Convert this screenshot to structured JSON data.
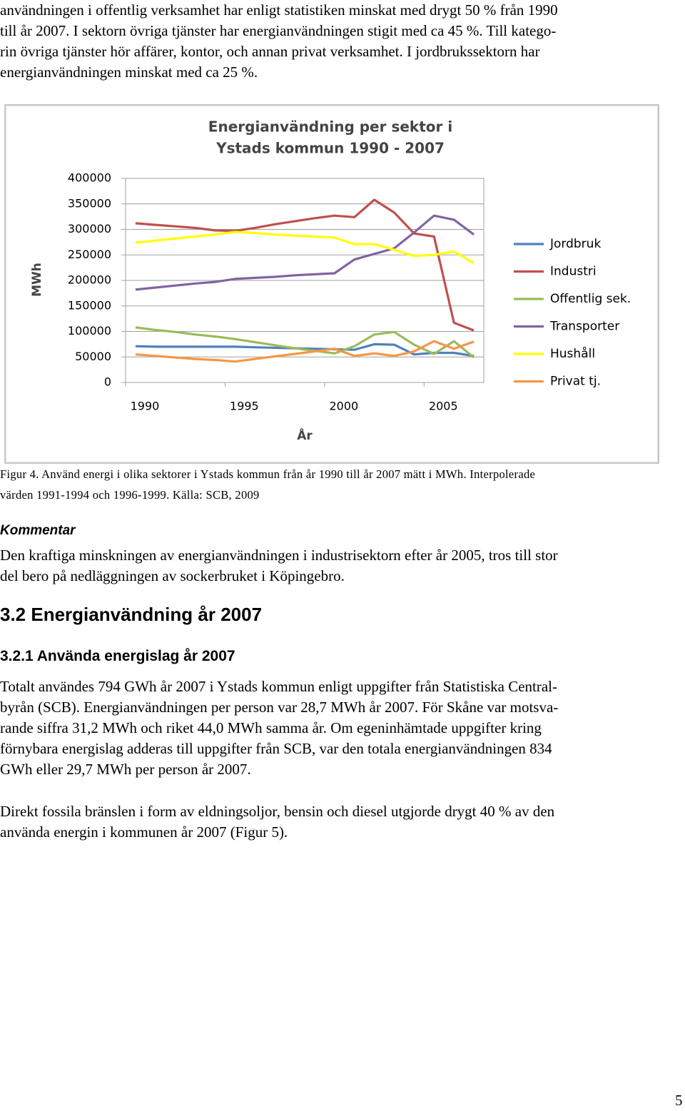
{
  "intro": [
    "användningen i offentlig verksamhet har enligt statistiken minskat med drygt 50 % från 1990",
    "till år 2007. I sektorn övriga tjänster har energianvändningen stigit med ca 45 %. Till katego-",
    "rin övriga tjänster hör affärer, kontor, och annan privat verksamhet. I jordbrukssektorn har",
    "energianvändningen minskat med ca 25 %."
  ],
  "chart_data": {
    "type": "line",
    "title": [
      "Energianvändning per sektor i",
      "Ystads kommun 1990 - 2007"
    ],
    "x_label": "År",
    "y_label": "MWh",
    "categories": [
      "1990",
      null,
      null,
      null,
      null,
      "1995",
      null,
      null,
      null,
      null,
      "2000",
      null,
      null,
      null,
      null,
      "2005",
      null,
      null
    ],
    "ylim": [
      0,
      400000
    ],
    "yticks": [
      0,
      50000,
      100000,
      150000,
      200000,
      250000,
      300000,
      350000,
      400000
    ],
    "grid": true,
    "legend": "right",
    "series": [
      {
        "name": "Jordbruk",
        "color": "#4f81bd",
        "values": [
          71000,
          70000,
          70000,
          70000,
          70000,
          70000,
          69000,
          68000,
          67000,
          66000,
          65000,
          64000,
          75000,
          74000,
          55000,
          58000,
          58000,
          52000
        ]
      },
      {
        "name": "Industri",
        "color": "#c0504d",
        "values": [
          312000,
          309000,
          306000,
          303000,
          298000,
          297000,
          303000,
          310000,
          316000,
          322000,
          327000,
          324000,
          358000,
          333000,
          292000,
          286000,
          117000,
          102000
        ]
      },
      {
        "name": "Offentlig sek.",
        "color": "#9bbb59",
        "values": [
          108000,
          103000,
          99000,
          94000,
          90000,
          85000,
          79000,
          73000,
          67000,
          62000,
          57000,
          71000,
          94000,
          99000,
          74000,
          56000,
          81000,
          49000
        ]
      },
      {
        "name": "Transporter",
        "color": "#8064a2",
        "values": [
          182000,
          186000,
          190000,
          194000,
          197000,
          203000,
          205000,
          207000,
          210000,
          212000,
          214000,
          241000,
          252000,
          263000,
          294000,
          327000,
          319000,
          290000
        ]
      },
      {
        "name": "Hushåll",
        "color": "#ffff00",
        "values": [
          274000,
          278000,
          282000,
          286000,
          290000,
          295000,
          293000,
          290000,
          288000,
          286000,
          284000,
          271000,
          271000,
          260000,
          248000,
          250000,
          257000,
          234000
        ]
      },
      {
        "name": "Privat tj.",
        "color": "#f79646",
        "values": [
          55000,
          52000,
          49000,
          46000,
          44000,
          41000,
          46000,
          51000,
          56000,
          61000,
          66000,
          52000,
          57000,
          52000,
          61000,
          81000,
          66000,
          80000
        ]
      }
    ]
  },
  "caption": [
    "Figur 4. Använd energi i olika sektorer i Ystads kommun från år 1990 till år 2007 mätt i MWh. Interpolerade",
    "värden 1991-1994 och 1996-1999. Källa: SCB, 2009"
  ],
  "comment_heading": "Kommentar",
  "comment": [
    "Den kraftiga minskningen av energianvändningen i industrisektorn efter år 2005, tros till stor",
    "del bero på nedläggningen av sockerbruket i Köpingebro."
  ],
  "section_heading": "3.2 Energianvändning år 2007",
  "subsection_heading": "3.2.1 Använda energislag år 2007",
  "paragraph1": [
    "Totalt användes 794 GWh år 2007 i Ystads kommun enligt uppgifter från Statistiska Central-",
    "byrån (SCB). Energianvändningen per person var 28,7 MWh år 2007. För Skåne var motsva-",
    "rande siffra 31,2 MWh och riket 44,0 MWh samma år. Om egeninhämtade uppgifter kring",
    "förnybara energislag adderas till uppgifter från SCB, var den totala energianvändningen 834",
    "GWh eller 29,7 MWh per person år 2007."
  ],
  "paragraph2": [
    "Direkt fossila bränslen i form av eldningsoljor, bensin och diesel utgjorde drygt 40 % av den",
    "använda energin i kommunen år 2007 (Figur 5)."
  ],
  "page_number": "5"
}
